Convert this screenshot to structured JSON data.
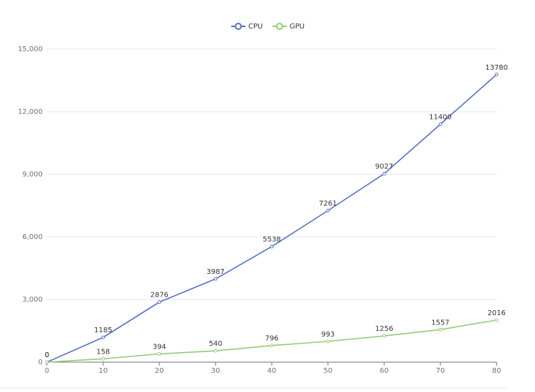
{
  "chart_data": {
    "type": "line",
    "x": [
      0,
      10,
      20,
      30,
      40,
      50,
      60,
      70,
      80
    ],
    "series": [
      {
        "name": "CPU",
        "color": "#5470c6",
        "values": [
          0,
          1185,
          2876,
          3987,
          5538,
          7261,
          9027,
          11400,
          13780
        ]
      },
      {
        "name": "GPU",
        "color": "#91cc75",
        "values": [
          0,
          158,
          394,
          540,
          796,
          993,
          1256,
          1557,
          2016
        ]
      }
    ],
    "xlim": [
      0,
      80
    ],
    "xticks": [
      0,
      10,
      20,
      30,
      40,
      50,
      60,
      70,
      80
    ],
    "ylim": [
      0,
      15000
    ],
    "yticks": [
      0,
      {
        "value": 3000,
        "label": "3,000"
      },
      {
        "value": 6000,
        "label": "6,000"
      },
      {
        "value": 9000,
        "label": "9,000"
      },
      {
        "value": 12000,
        "label": "12,000"
      },
      {
        "value": 15000,
        "label": "15,000"
      }
    ],
    "grid": true,
    "legend": "top"
  }
}
